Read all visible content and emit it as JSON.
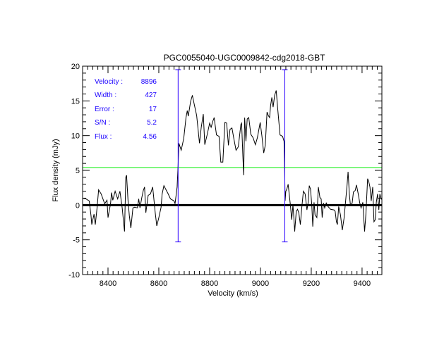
{
  "chart_data": {
    "type": "line",
    "title": "PGC0055040-UGC0009842-cdg2018-GBT",
    "xlabel": "Velocity (km/s)",
    "ylabel": "Flux density (mJy)",
    "xlim": [
      8300,
      9478
    ],
    "ylim": [
      -10,
      20
    ],
    "xticks": [
      8400,
      8600,
      8800,
      9000,
      9200,
      9400
    ],
    "xtick_labels": [
      "8400",
      "8600",
      "8800",
      "9000",
      "9200",
      "9400"
    ],
    "yticks": [
      -10,
      -5,
      0,
      5,
      10,
      15,
      20
    ],
    "ytick_labels": [
      "-10",
      "-5",
      "0",
      "5",
      "10",
      "15",
      "20"
    ],
    "x_minor_step": 20,
    "y_minor_step": 1,
    "grid": false,
    "zero_line": 0,
    "threshold_line": {
      "value": 5.4,
      "color": "#00ee00"
    },
    "velocity_markers": {
      "x": [
        8676,
        9096
      ],
      "ymin": -5.3,
      "ymax": 19.5,
      "color": "#2a00ff"
    },
    "annotations": [
      {
        "label": "Velocity :",
        "value": "8896"
      },
      {
        "label": "Width :",
        "value": "427"
      },
      {
        "label": "Error :",
        "value": "17"
      },
      {
        "label": "S/N :",
        "value": "5.2"
      },
      {
        "label": "Flux :",
        "value": "4.56"
      }
    ],
    "series": [
      {
        "name": "spectrum",
        "color": "#000000",
        "x": [
          8300,
          8313,
          8326,
          8333,
          8336,
          8345,
          8350,
          8357,
          8363,
          8373,
          8387,
          8396,
          8400,
          8410,
          8414,
          8419,
          8428,
          8438,
          8447,
          8456,
          8463,
          8465,
          8470,
          8473,
          8479,
          8484,
          8490,
          8498,
          8505,
          8516,
          8521,
          8526,
          8533,
          8539,
          8544,
          8549,
          8558,
          8567,
          8576,
          8586,
          8592,
          8600,
          8609,
          8613,
          8620,
          8627,
          8637,
          8646,
          8660,
          8664,
          8672,
          8676,
          8679,
          8688,
          8698,
          8707,
          8712,
          8716,
          8725,
          8732,
          8739,
          8749,
          8760,
          8767,
          8775,
          8781,
          8790,
          8800,
          8806,
          8813,
          8818,
          8823,
          8827,
          8837,
          8844,
          8852,
          8860,
          8867,
          8874,
          8880,
          8888,
          8895,
          8904,
          8913,
          8923,
          8926,
          8931,
          8934,
          8938,
          8943,
          8948,
          8954,
          8962,
          8971,
          8980,
          8988,
          8999,
          9006,
          9013,
          9019,
          9026,
          9031,
          9036,
          9040,
          9045,
          9050,
          9056,
          9062,
          9068,
          9077,
          9087,
          9093,
          9095,
          9097,
          9100,
          9104,
          9109,
          9114,
          9118,
          9123,
          9128,
          9132,
          9135,
          9141,
          9146,
          9151,
          9157,
          9162,
          9169,
          9176,
          9183,
          9188,
          9192,
          9197,
          9202,
          9206,
          9211,
          9215,
          9222,
          9228,
          9234,
          9239,
          9243,
          9248,
          9253,
          9259,
          9266,
          9276,
          9290,
          9294,
          9299,
          9303,
          9308,
          9315,
          9322,
          9329,
          9336,
          9341,
          9345,
          9350,
          9354,
          9361,
          9366,
          9373,
          9378,
          9385,
          9391,
          9396,
          9403,
          9410,
          9415,
          9422,
          9427,
          9431,
          9436,
          9442,
          9447,
          9452,
          9456,
          9461,
          9466,
          9470,
          9476
        ],
        "y": [
          1.0,
          0.9,
          0.6,
          -1.5,
          -2.8,
          -1.3,
          -2.8,
          -0.4,
          2.2,
          1.6,
          0.2,
          0.7,
          -1.8,
          0.2,
          1.8,
          0.7,
          2.0,
          0.9,
          2.0,
          -0.4,
          -3.1,
          -3.8,
          4.0,
          4.3,
          0.6,
          -1.5,
          -3.3,
          -0.4,
          -0.3,
          -0.4,
          0.9,
          -0.4,
          1.1,
          2.1,
          2.6,
          -1.1,
          1.4,
          1.6,
          2.6,
          -1.1,
          -3.0,
          -1.8,
          -0.3,
          1.6,
          2.8,
          2.3,
          1.6,
          0.9,
          0.6,
          0.2,
          2.6,
          5.7,
          8.9,
          7.9,
          9.6,
          12.6,
          13.6,
          12.8,
          14.9,
          15.8,
          14.6,
          12.9,
          8.9,
          11.2,
          13.1,
          8.7,
          10.1,
          11.8,
          11.2,
          12.1,
          12.6,
          11.2,
          10.1,
          9.9,
          6.2,
          6.2,
          11.9,
          11.8,
          8.6,
          10.9,
          11.1,
          9.6,
          7.9,
          8.4,
          11.6,
          11.8,
          7.0,
          4.3,
          12.6,
          9.2,
          12.4,
          12.6,
          10.2,
          9.7,
          8.7,
          9.7,
          11.9,
          9.9,
          7.5,
          8.6,
          13.4,
          12.9,
          12.6,
          14.3,
          15.5,
          14.1,
          15.8,
          16.5,
          13.9,
          10.1,
          9.9,
          9.2,
          6.2,
          0.6,
          2.0,
          2.3,
          3.0,
          1.3,
          0.0,
          -2.1,
          0.0,
          -2.1,
          -3.8,
          -0.9,
          -0.6,
          -1.1,
          -2.8,
          -0.6,
          2.0,
          1.6,
          -0.7,
          0.4,
          2.8,
          2.3,
          0.0,
          -3.1,
          0.4,
          -1.4,
          -1.8,
          2.6,
          1.1,
          0.9,
          -1.8,
          0.3,
          -0.4,
          0.3,
          -0.2,
          -0.6,
          -0.7,
          -0.9,
          -2.4,
          -2.8,
          -0.2,
          -1.4,
          -3.6,
          -1.9,
          0.9,
          2.9,
          4.8,
          1.6,
          0.0,
          0.3,
          1.9,
          2.1,
          2.9,
          1.6,
          0.3,
          -0.4,
          0.4,
          -3.8,
          -1.4,
          3.8,
          3.3,
          2.6,
          0.6,
          2.6,
          -2.4,
          -2.1,
          0.4,
          1.6,
          -0.7,
          1.6,
          0.8
        ]
      }
    ]
  }
}
